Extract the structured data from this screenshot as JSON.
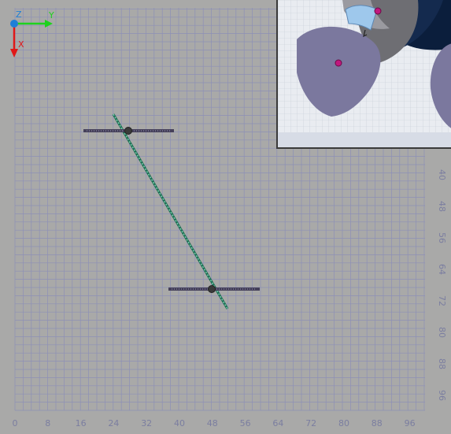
{
  "axes": {
    "z_label": "Z",
    "y_label": "Y",
    "x_label": "X",
    "colors": {
      "z": "#1e7fd8",
      "y": "#1ed21e",
      "x": "#e01818"
    }
  },
  "ruler_bottom": {
    "labels": [
      "0",
      "8",
      "16",
      "24",
      "32",
      "40",
      "48",
      "56",
      "64",
      "72",
      "80",
      "88",
      "96"
    ]
  },
  "ruler_right": {
    "labels": [
      "40",
      "48",
      "56",
      "64",
      "72",
      "80",
      "88",
      "96"
    ]
  },
  "colors": {
    "background": "#a9a9a8",
    "grid": "#8d90b6",
    "ruler_text": "#7b7ea0",
    "link": "#2e8d6b",
    "bar": "#45405a",
    "node": "#3a3a3a",
    "petal": "#7b789e",
    "pin": "#c0187e",
    "highlight": "#9ec8ec"
  },
  "inset": {
    "icon": "rotation-handle-icon"
  }
}
